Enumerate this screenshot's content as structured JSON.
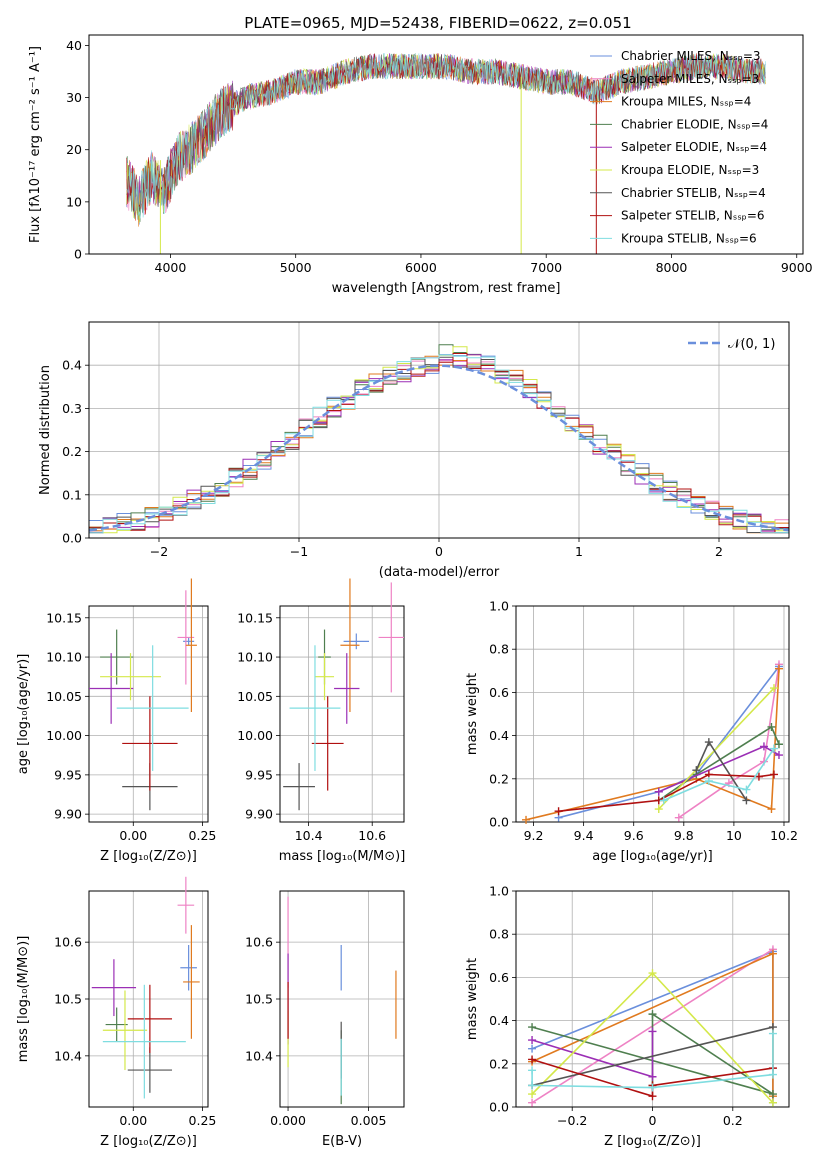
{
  "title": "PLATE=0965, MJD=52438, FIBERID=0622, z=0.051",
  "colors": [
    "#6a8fdc",
    "#ee82c4",
    "#e07a1f",
    "#4f7f4f",
    "#9b2fb5",
    "#d4e84a",
    "#555555",
    "#b01010",
    "#7fdde0"
  ],
  "chart_data": [
    {
      "id": "spectrum",
      "type": "line",
      "xlabel": "wavelength [Angstrom, rest frame]",
      "ylabel": "Flux [fλ10⁻¹⁷ erg cm⁻² s⁻¹ A⁻¹]",
      "xlim": [
        3350,
        9050
      ],
      "ylim": [
        0,
        42
      ],
      "xticks": [
        4000,
        5000,
        6000,
        7000,
        8000,
        9000
      ],
      "yticks": [
        0,
        10,
        20,
        30,
        40
      ],
      "legend_position": "upper right",
      "series": [
        {
          "name": "Chabrier MILES, N_SSP=3"
        },
        {
          "name": "Salpeter MILES, N_SSP=3"
        },
        {
          "name": "Kroupa MILES, N_SSP=4"
        },
        {
          "name": "Chabrier ELODIE, N_SSP=4"
        },
        {
          "name": "Salpeter ELODIE, N_SSP=4"
        },
        {
          "name": "Kroupa ELODIE, N_SSP=3"
        },
        {
          "name": "Chabrier STELIB, N_SSP=4"
        },
        {
          "name": "Salpeter STELIB, N_SSP=6"
        },
        {
          "name": "Kroupa STELIB, N_SSP=6"
        }
      ],
      "continuum": {
        "x": [
          3650,
          3750,
          3850,
          3950,
          4050,
          4200,
          4400,
          4600,
          4800,
          5000,
          5200,
          5400,
          5600,
          5800,
          6000,
          6200,
          6400,
          6600,
          6800,
          7000,
          7200,
          7400,
          7600,
          7800,
          8000,
          8200,
          8400,
          8600,
          8750
        ],
        "y": [
          14,
          10,
          15,
          12,
          18,
          21,
          27,
          30,
          31,
          33,
          33,
          35,
          36,
          36,
          36,
          36,
          35,
          35,
          34,
          33,
          33,
          31,
          33,
          34,
          35,
          36,
          36,
          35,
          35
        ]
      }
    },
    {
      "id": "residuals",
      "type": "line",
      "xlabel": "(data-model)/error",
      "ylabel": "Normed distribution",
      "xlim": [
        -2.5,
        2.5
      ],
      "ylim": [
        0,
        0.5
      ],
      "xticks": [
        -2,
        -1,
        0,
        1,
        2
      ],
      "yticks": [
        0.0,
        0.1,
        0.2,
        0.3,
        0.4
      ],
      "grid": true,
      "legend": "𝒩(0, 1)",
      "normal_curve": {
        "mean": 0,
        "sigma": 1
      }
    },
    {
      "id": "age_vs_Z",
      "type": "scatter",
      "xlabel": "Z [log₁₀(Z/Z⊙)]",
      "ylabel": "age  [log₁₀(age/yr)]",
      "xlim": [
        -0.16,
        0.27
      ],
      "ylim": [
        9.89,
        10.165
      ],
      "xticks": [
        0.0,
        0.25
      ],
      "xticklabels": [
        "0.00",
        "0.25"
      ],
      "yticks": [
        9.9,
        9.95,
        10.0,
        10.05,
        10.1,
        10.15
      ],
      "grid": true,
      "points": [
        {
          "x": 0.2,
          "xe": 0.02,
          "y": 10.12,
          "ye": 0.005
        },
        {
          "x": 0.19,
          "xe": 0.03,
          "y": 10.125,
          "ye": 0.06
        },
        {
          "x": 0.21,
          "xe": 0.02,
          "y": 10.115,
          "ye": 0.085
        },
        {
          "x": -0.06,
          "xe": 0.06,
          "y": 10.1,
          "ye": 0.035
        },
        {
          "x": -0.08,
          "xe": 0.08,
          "y": 10.06,
          "ye": 0.045
        },
        {
          "x": -0.01,
          "xe": 0.11,
          "y": 10.075,
          "ye": 0.03
        },
        {
          "x": 0.06,
          "xe": 0.1,
          "y": 9.935,
          "ye": 0.03
        },
        {
          "x": 0.06,
          "xe": 0.1,
          "y": 9.99,
          "ye": 0.06
        },
        {
          "x": 0.07,
          "xe": 0.13,
          "y": 10.035,
          "ye": 0.08
        }
      ]
    },
    {
      "id": "age_vs_mass",
      "type": "scatter",
      "xlabel": "mass [log₁₀(M/M⊙)]",
      "ylabel": "",
      "xlim": [
        10.31,
        10.7
      ],
      "ylim": [
        9.89,
        10.165
      ],
      "xticks": [
        10.4,
        10.6
      ],
      "xticklabels": [
        "10.4",
        "10.6"
      ],
      "yticks": [
        9.9,
        9.95,
        10.0,
        10.05,
        10.1,
        10.15
      ],
      "grid": true,
      "points": [
        {
          "x": 10.55,
          "xe": 0.04,
          "y": 10.12,
          "ye": 0.01
        },
        {
          "x": 10.66,
          "xe": 0.04,
          "y": 10.125,
          "ye": 0.07
        },
        {
          "x": 10.53,
          "xe": 0.03,
          "y": 10.115,
          "ye": 0.085
        },
        {
          "x": 10.45,
          "xe": 0.02,
          "y": 10.1,
          "ye": 0.035
        },
        {
          "x": 10.52,
          "xe": 0.04,
          "y": 10.06,
          "ye": 0.045
        },
        {
          "x": 10.45,
          "xe": 0.03,
          "y": 10.075,
          "ye": 0.03
        },
        {
          "x": 10.37,
          "xe": 0.05,
          "y": 9.935,
          "ye": 0.03
        },
        {
          "x": 10.46,
          "xe": 0.05,
          "y": 9.99,
          "ye": 0.06
        },
        {
          "x": 10.42,
          "xe": 0.08,
          "y": 10.035,
          "ye": 0.08
        }
      ]
    },
    {
      "id": "mass_weight_vs_age",
      "type": "line",
      "xlabel": "age  [log₁₀(age/yr)]",
      "ylabel": "mass weight",
      "xlim": [
        9.13,
        10.22
      ],
      "ylim": [
        0,
        1
      ],
      "xticks": [
        9.2,
        9.4,
        9.6,
        9.8,
        10.0,
        10.2
      ],
      "yticks": [
        0,
        0.2,
        0.4,
        0.6,
        0.8,
        1.0
      ],
      "grid": true,
      "series": [
        {
          "x": [
            9.3,
            9.7,
            9.85,
            10.18
          ],
          "y": [
            0.02,
            0.14,
            0.22,
            0.72
          ]
        },
        {
          "x": [
            9.78,
            9.98,
            10.12,
            10.18
          ],
          "y": [
            0.02,
            0.18,
            0.28,
            0.73
          ]
        },
        {
          "x": [
            9.17,
            9.85,
            10.15,
            10.18
          ],
          "y": [
            0.01,
            0.2,
            0.06,
            0.71
          ]
        },
        {
          "x": [
            9.7,
            9.85,
            10.15,
            10.18
          ],
          "y": [
            0.1,
            0.22,
            0.44,
            0.36
          ]
        },
        {
          "x": [
            9.7,
            10.12,
            10.18
          ],
          "y": [
            0.14,
            0.35,
            0.31
          ]
        },
        {
          "x": [
            9.7,
            10.16
          ],
          "y": [
            0.06,
            0.62
          ]
        },
        {
          "x": [
            9.85,
            9.9,
            10.05
          ],
          "y": [
            0.24,
            0.37,
            0.1
          ]
        },
        {
          "x": [
            9.3,
            9.7,
            9.9,
            10.1,
            10.16
          ],
          "y": [
            0.05,
            0.1,
            0.22,
            0.21,
            0.22
          ]
        },
        {
          "x": [
            9.72,
            9.9,
            10.05,
            10.16
          ],
          "y": [
            0.1,
            0.19,
            0.15,
            0.34
          ]
        }
      ]
    },
    {
      "id": "mass_vs_Z",
      "type": "scatter",
      "xlabel": "Z [log₁₀(Z/Z⊙)]",
      "ylabel": "mass [log₁₀(M/M⊙)]",
      "xlim": [
        -0.16,
        0.27
      ],
      "ylim": [
        10.31,
        10.69
      ],
      "xticks": [
        0.0,
        0.25
      ],
      "xticklabels": [
        "0.00",
        "0.25"
      ],
      "yticks": [
        10.4,
        10.5,
        10.6
      ],
      "grid": true,
      "points": [
        {
          "x": 0.2,
          "xe": 0.03,
          "y": 10.555,
          "ye": 0.04
        },
        {
          "x": 0.19,
          "xe": 0.03,
          "y": 10.665,
          "ye": 0.05
        },
        {
          "x": 0.21,
          "xe": 0.03,
          "y": 10.53,
          "ye": 0.1
        },
        {
          "x": -0.06,
          "xe": 0.04,
          "y": 10.455,
          "ye": 0.03
        },
        {
          "x": -0.07,
          "xe": 0.08,
          "y": 10.52,
          "ye": 0.05
        },
        {
          "x": -0.03,
          "xe": 0.08,
          "y": 10.445,
          "ye": 0.07
        },
        {
          "x": 0.06,
          "xe": 0.08,
          "y": 10.375,
          "ye": 0.04
        },
        {
          "x": 0.06,
          "xe": 0.08,
          "y": 10.465,
          "ye": 0.06
        },
        {
          "x": 0.04,
          "xe": 0.15,
          "y": 10.425,
          "ye": 0.1
        }
      ]
    },
    {
      "id": "ebv",
      "type": "scatter",
      "xlabel": "E(B-V)",
      "ylabel": "",
      "xlim": [
        -0.0005,
        0.0072
      ],
      "ylim": [
        10.31,
        10.69
      ],
      "xticks": [
        0.0,
        0.005
      ],
      "xticklabels": [
        "0.000",
        "0.005"
      ],
      "yticks": [
        10.4,
        10.5,
        10.6
      ],
      "grid": true,
      "points": [
        {
          "x": 0.0033,
          "y": 10.555,
          "ye": 0.04
        },
        {
          "x": 0.0,
          "y": 10.6,
          "ye": 0.08
        },
        {
          "x": 0.0067,
          "y": 10.49,
          "ye": 0.06
        },
        {
          "x": 0.0033,
          "y": 10.38,
          "ye": 0.065
        },
        {
          "x": 0.0,
          "y": 10.5,
          "ye": 0.08
        },
        {
          "x": 0.0,
          "y": 10.43,
          "ye": 0.05
        },
        {
          "x": 0.0033,
          "y": 10.41,
          "ye": 0.05
        },
        {
          "x": 0.0,
          "y": 10.48,
          "ye": 0.05
        },
        {
          "x": 0.0033,
          "y": 10.38,
          "ye": 0.05
        }
      ]
    },
    {
      "id": "mass_weight_vs_Z",
      "type": "line",
      "xlabel": "Z [log₁₀(Z/Z⊙)]",
      "ylabel": "mass weight",
      "xlim": [
        -0.34,
        0.34
      ],
      "ylim": [
        0,
        1
      ],
      "xticks": [
        -0.2,
        0.0,
        0.2
      ],
      "yticks": [
        0,
        0.2,
        0.4,
        0.6,
        0.8,
        1.0
      ],
      "grid": true,
      "series": [
        {
          "x": [
            -0.3,
            0.3,
            0.3
          ],
          "y": [
            0.27,
            0.72,
            0.02
          ]
        },
        {
          "x": [
            -0.3,
            0.3
          ],
          "y": [
            0.02,
            0.73
          ]
        },
        {
          "x": [
            -0.3,
            0.3,
            0.3
          ],
          "y": [
            0.21,
            0.71,
            0.05
          ]
        },
        {
          "x": [
            -0.3,
            0.3,
            0.0,
            0.0
          ],
          "y": [
            0.37,
            0.06,
            0.43,
            0.1
          ]
        },
        {
          "x": [
            -0.3,
            0.0,
            0.0
          ],
          "y": [
            0.31,
            0.14,
            0.35
          ]
        },
        {
          "x": [
            -0.3,
            0.0,
            0.3
          ],
          "y": [
            0.06,
            0.62,
            0.02
          ]
        },
        {
          "x": [
            -0.3,
            0.3
          ],
          "y": [
            0.1,
            0.37
          ]
        },
        {
          "x": [
            -0.3,
            0.0,
            0.0,
            0.3
          ],
          "y": [
            0.22,
            0.05,
            0.1,
            0.18
          ]
        },
        {
          "x": [
            -0.3,
            -0.3,
            0.0,
            0.3,
            0.3
          ],
          "y": [
            0.17,
            0.1,
            0.09,
            0.15,
            0.34
          ]
        }
      ]
    }
  ]
}
